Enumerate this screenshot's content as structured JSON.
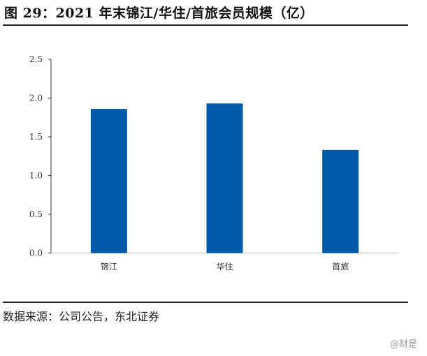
{
  "title": "图 29：2021 年末锦江/华住/首旅会员规模（亿）",
  "source": "数据来源：公司公告，东北证券",
  "watermark": "@财是",
  "chart_data": {
    "type": "bar",
    "title": "2021 年末锦江/华住/首旅会员规模（亿）",
    "xlabel": "",
    "ylabel": "",
    "categories": [
      "锦江",
      "华住",
      "首旅"
    ],
    "values": [
      1.86,
      1.93,
      1.33
    ],
    "ylim": [
      0,
      2.5
    ],
    "yticks": [
      "0.0",
      "0.5",
      "1.0",
      "1.5",
      "2.0",
      "2.5"
    ],
    "grid": false,
    "color": "#0058A8"
  }
}
